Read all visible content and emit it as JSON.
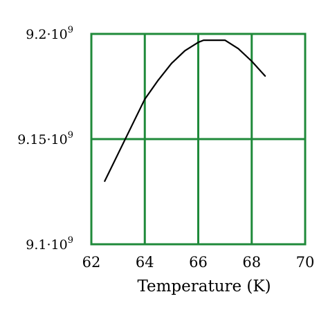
{
  "chart_data": {
    "type": "line",
    "xlabel": "Temperature (K)",
    "ylabel": "",
    "xlim": [
      62,
      70
    ],
    "ylim": [
      9100000000.0,
      9200000000.0
    ],
    "grid": true,
    "x_ticks": [
      62,
      64,
      66,
      68,
      70
    ],
    "x_tick_labels": [
      "62",
      "64",
      "66",
      "68",
      "70"
    ],
    "y_ticks": [
      9100000000.0,
      9150000000.0,
      9200000000.0
    ],
    "y_tick_labels": [
      {
        "base": "9.1·10",
        "exp": "9"
      },
      {
        "base": "9.15·10",
        "exp": "9"
      },
      {
        "base": "9.2·10",
        "exp": "9"
      }
    ],
    "colors": {
      "grid": "#1f8a3a",
      "line": "#000000"
    },
    "series": [
      {
        "x": [
          62.5,
          63.0,
          63.5,
          64.0,
          64.5,
          65.0,
          65.5,
          66.0,
          66.2,
          66.5,
          67.0,
          67.5,
          68.0,
          68.5
        ],
        "y": [
          9130000000.0,
          9143000000.0,
          9156000000.0,
          9169000000.0,
          9178000000.0,
          9186000000.0,
          9192000000.0,
          9196000000.0,
          9197000000.0,
          9197000000.0,
          9197000000.0,
          9193000000.0,
          9187000000.0,
          9180000000.0
        ]
      }
    ]
  }
}
